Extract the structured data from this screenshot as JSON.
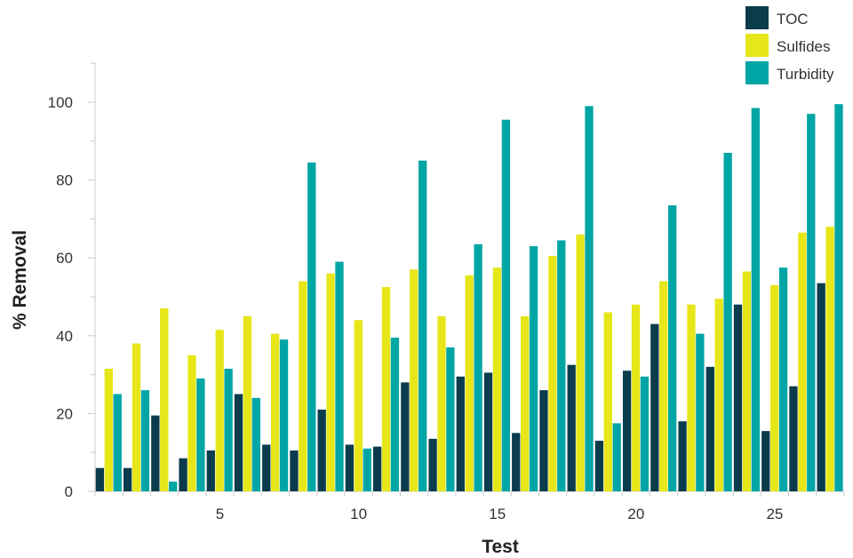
{
  "chart_data": {
    "type": "bar",
    "xlabel": "Test",
    "ylabel": "% Removal",
    "ylim": [
      0,
      110
    ],
    "yticks": [
      0,
      20,
      40,
      60,
      80,
      100
    ],
    "xticks": [
      5,
      10,
      15,
      20,
      25
    ],
    "x": [
      1,
      2,
      3,
      4,
      5,
      6,
      7,
      8,
      9,
      10,
      11,
      12,
      13,
      14,
      15,
      16,
      17,
      18,
      19,
      20,
      21,
      22,
      23,
      24,
      25,
      26,
      27
    ],
    "legend_position": "top-right",
    "grid": false,
    "series": [
      {
        "name": "TOC",
        "color": "#0b3c4d",
        "values": [
          6,
          6,
          19.5,
          8.5,
          10.5,
          25,
          12,
          10.5,
          21,
          12,
          11.5,
          28,
          13.5,
          29.5,
          30.5,
          15,
          26,
          32.5,
          13,
          31,
          43,
          18,
          32,
          48,
          15.5,
          27,
          53.5
        ]
      },
      {
        "name": "Sulfides",
        "color": "#e6e619",
        "values": [
          31.5,
          38,
          47,
          35,
          41.5,
          45,
          40.5,
          54,
          56,
          44,
          52.5,
          57,
          45,
          55.5,
          57.5,
          45,
          60.5,
          66,
          46,
          48,
          54,
          48,
          49.5,
          56.5,
          53,
          66.5,
          68
        ]
      },
      {
        "name": "Turbidity",
        "color": "#00a5a5",
        "values": [
          25,
          26,
          2.5,
          29,
          31.5,
          24,
          39,
          84.5,
          59,
          11,
          39.5,
          85,
          37,
          63.5,
          95.5,
          63,
          64.5,
          99,
          17.5,
          29.5,
          73.5,
          40.5,
          87,
          98.5,
          57.5,
          97,
          99.5
        ]
      }
    ]
  }
}
